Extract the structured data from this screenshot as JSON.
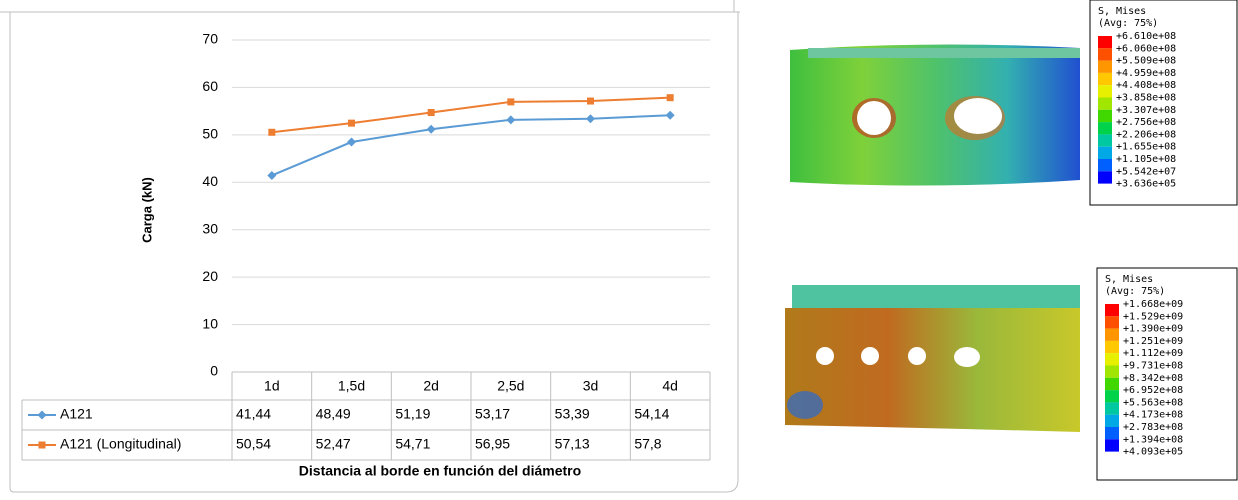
{
  "chart_data": {
    "type": "line",
    "y_label": "Carga (kN)",
    "x_label": "Distancia al borde en función del diámetro",
    "categories": [
      "1d",
      "1,5d",
      "2d",
      "2,5d",
      "3d",
      "4d"
    ],
    "series": [
      {
        "name": "A121",
        "color": "#5b9bd5",
        "marker": "diamond",
        "values": [
          41.44,
          48.49,
          51.19,
          53.17,
          53.39,
          54.14
        ],
        "value_labels": [
          "41,44",
          "48,49",
          "51,19",
          "53,17",
          "53,39",
          "54,14"
        ]
      },
      {
        "name": "A121 (Longitudinal)",
        "color": "#ed7d31",
        "marker": "square",
        "values": [
          50.54,
          52.47,
          54.71,
          56.95,
          57.13,
          57.84
        ],
        "value_labels": [
          "50,54",
          "52,47",
          "54,71",
          "56,95",
          "57,13",
          "57,8"
        ]
      }
    ],
    "ylim": [
      0,
      70
    ],
    "yticks": [
      0,
      10,
      20,
      30,
      40,
      50,
      60,
      70
    ],
    "grid": true
  },
  "contour_legends": [
    {
      "title": "S, Mises",
      "subtitle": "(Avg: 75%)",
      "values": [
        "+6.610e+08",
        "+6.060e+08",
        "+5.509e+08",
        "+4.959e+08",
        "+4.408e+08",
        "+3.858e+08",
        "+3.307e+08",
        "+2.756e+08",
        "+2.206e+08",
        "+1.655e+08",
        "+1.105e+08",
        "+5.542e+07",
        "+3.636e+05"
      ]
    },
    {
      "title": "S, Mises",
      "subtitle": "(Avg: 75%)",
      "values": [
        "+1.668e+09",
        "+1.529e+09",
        "+1.390e+09",
        "+1.251e+09",
        "+1.112e+09",
        "+9.731e+08",
        "+8.342e+08",
        "+6.952e+08",
        "+5.563e+08",
        "+4.173e+08",
        "+2.783e+08",
        "+1.394e+08",
        "+4.093e+05"
      ]
    }
  ]
}
